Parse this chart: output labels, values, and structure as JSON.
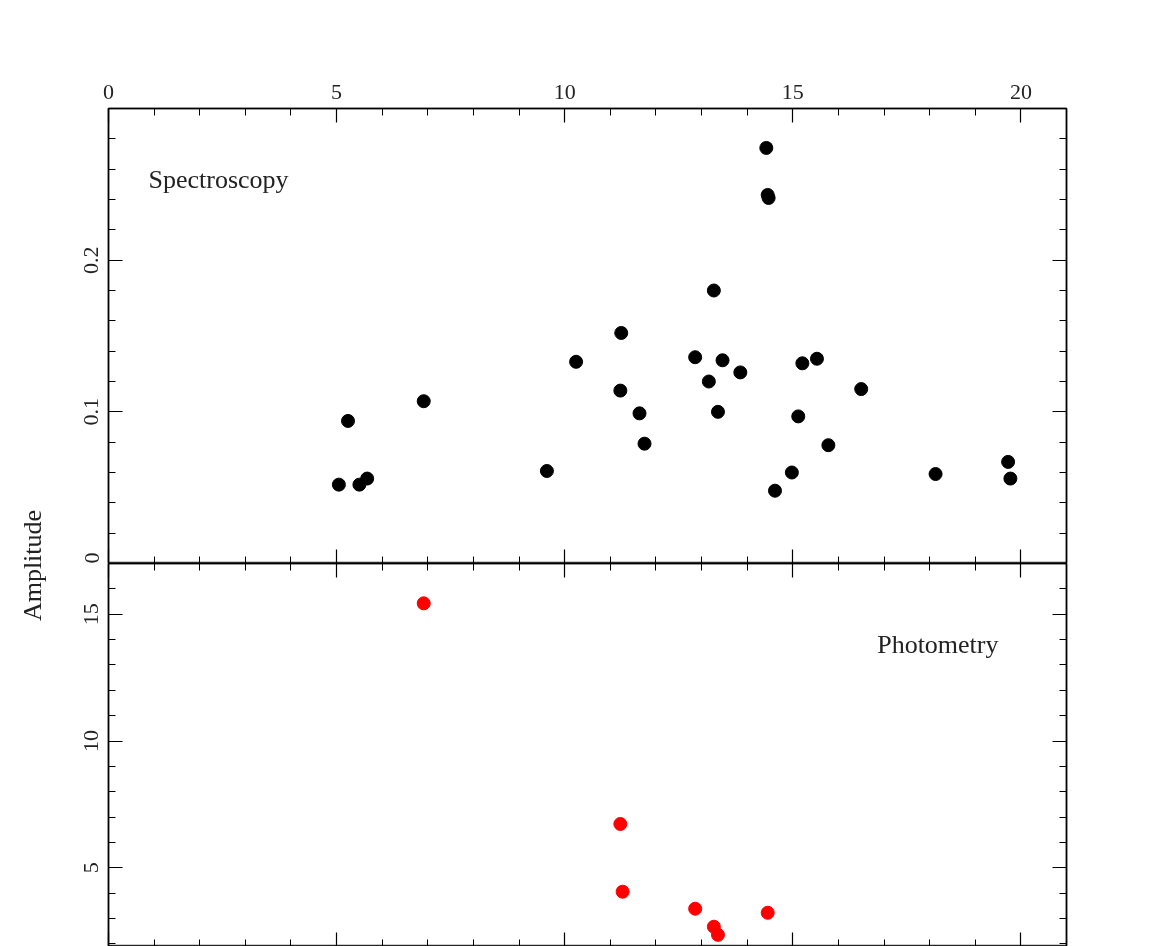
{
  "chart_data": [
    {
      "type": "scatter",
      "ylabel": "Amplitude",
      "annotations": [
        "Spectroscopy"
      ],
      "marker": "circle",
      "grid": false,
      "xlim": [
        0,
        21
      ],
      "xticks": [
        0,
        5,
        10,
        15,
        20
      ],
      "ylim": [
        0,
        0.3
      ],
      "yticks": [
        0,
        0.1,
        0.2
      ],
      "series": [
        {
          "color": "#000000",
          "x": [
            5.05,
            5.25,
            5.5,
            5.67,
            6.91,
            9.61,
            10.25,
            11.24,
            11.22,
            11.64,
            11.75,
            12.86,
            13.16,
            13.27,
            13.36,
            13.46,
            13.85,
            14.42,
            14.45,
            14.47,
            14.61,
            14.98,
            15.12,
            15.21,
            15.53,
            15.78,
            16.5,
            18.13,
            19.72,
            19.77
          ],
          "values": [
            0.052,
            0.094,
            0.052,
            0.056,
            0.107,
            0.061,
            0.133,
            0.152,
            0.114,
            0.099,
            0.079,
            0.136,
            0.12,
            0.18,
            0.1,
            0.134,
            0.126,
            0.274,
            0.243,
            0.241,
            0.048,
            0.06,
            0.097,
            0.132,
            0.135,
            0.078,
            0.115,
            0.059,
            0.067,
            0.056
          ]
        }
      ]
    },
    {
      "type": "scatter",
      "annotations": [
        "Photometry"
      ],
      "marker": "circle",
      "grid": false,
      "tick_labels": "y",
      "xlim": [
        0,
        21
      ],
      "xticks": [
        0,
        5,
        10,
        15,
        20
      ],
      "ylim": [
        1.9,
        17
      ],
      "yticks": [
        5,
        10,
        15
      ],
      "series": [
        {
          "color": "#ff0000",
          "x": [
            6.91,
            11.22,
            11.27,
            12.86,
            13.27,
            13.36,
            14.45
          ],
          "values": [
            15.43,
            6.73,
            4.06,
            3.39,
            2.68,
            2.36,
            3.23
          ]
        }
      ]
    }
  ]
}
